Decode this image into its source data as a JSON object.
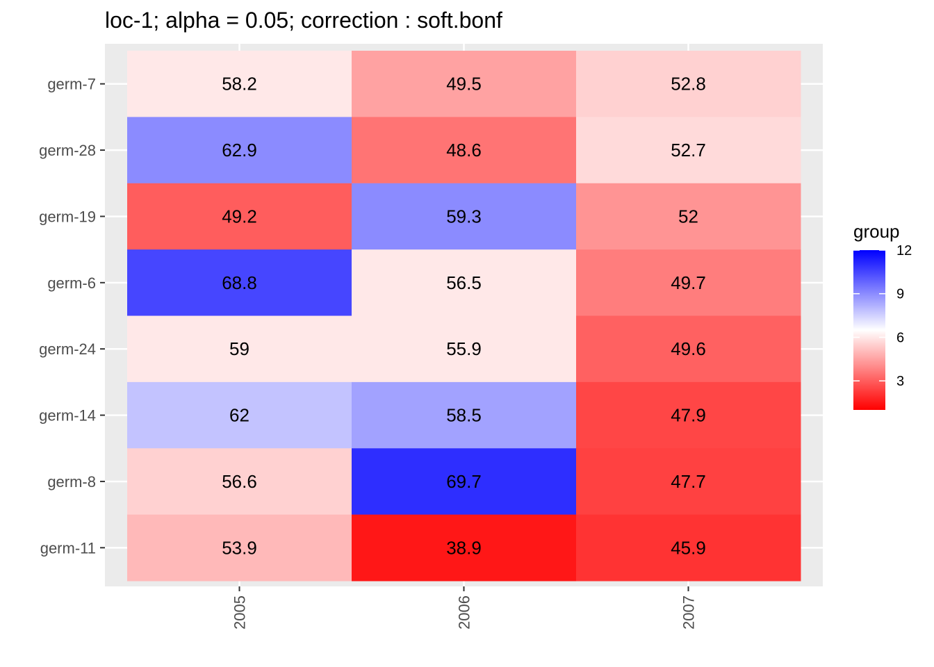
{
  "chart_data": {
    "type": "heatmap",
    "title": "loc-1; alpha = 0.05; correction : soft.bonf",
    "xlabel": "",
    "ylabel": "",
    "x_categories": [
      "2005",
      "2006",
      "2007"
    ],
    "y_categories": [
      "germ-7",
      "germ-28",
      "germ-19",
      "germ-6",
      "germ-24",
      "germ-14",
      "germ-8",
      "germ-11"
    ],
    "cells": [
      {
        "x": "2005",
        "y": "germ-7",
        "label": "58.2",
        "group": 6
      },
      {
        "x": "2006",
        "y": "germ-7",
        "label": "49.5",
        "group": 4.5
      },
      {
        "x": "2007",
        "y": "germ-7",
        "label": "52.8",
        "group": 5.5
      },
      {
        "x": "2005",
        "y": "germ-28",
        "label": "62.9",
        "group": 9
      },
      {
        "x": "2006",
        "y": "germ-28",
        "label": "48.6",
        "group": 3.5
      },
      {
        "x": "2007",
        "y": "germ-28",
        "label": "52.7",
        "group": 5.7
      },
      {
        "x": "2005",
        "y": "germ-19",
        "label": "49.2",
        "group": 3
      },
      {
        "x": "2006",
        "y": "germ-19",
        "label": "59.3",
        "group": 9
      },
      {
        "x": "2007",
        "y": "germ-19",
        "label": "52",
        "group": 4.2
      },
      {
        "x": "2005",
        "y": "germ-6",
        "label": "68.8",
        "group": 10.5
      },
      {
        "x": "2006",
        "y": "germ-6",
        "label": "56.5",
        "group": 6
      },
      {
        "x": "2007",
        "y": "germ-6",
        "label": "49.7",
        "group": 3.7
      },
      {
        "x": "2005",
        "y": "germ-24",
        "label": "59",
        "group": 6
      },
      {
        "x": "2006",
        "y": "germ-24",
        "label": "55.9",
        "group": 6
      },
      {
        "x": "2007",
        "y": "germ-24",
        "label": "49.6",
        "group": 3.1
      },
      {
        "x": "2005",
        "y": "germ-14",
        "label": "62",
        "group": 7.8
      },
      {
        "x": "2006",
        "y": "germ-14",
        "label": "58.5",
        "group": 8.5
      },
      {
        "x": "2007",
        "y": "germ-14",
        "label": "47.9",
        "group": 2.5
      },
      {
        "x": "2005",
        "y": "germ-8",
        "label": "56.6",
        "group": 5.5
      },
      {
        "x": "2006",
        "y": "germ-8",
        "label": "69.7",
        "group": 11
      },
      {
        "x": "2007",
        "y": "germ-8",
        "label": "47.7",
        "group": 2.4
      },
      {
        "x": "2005",
        "y": "germ-11",
        "label": "53.9",
        "group": 5
      },
      {
        "x": "2006",
        "y": "germ-11",
        "label": "38.9",
        "group": 1.5
      },
      {
        "x": "2007",
        "y": "germ-11",
        "label": "45.9",
        "group": 2.1
      }
    ],
    "legend": {
      "title": "group",
      "ticks": [
        3,
        6,
        9,
        12
      ],
      "range": [
        1,
        12
      ],
      "low_color": "#ff0000",
      "mid_color": "#ffffff",
      "high_color": "#0000ff",
      "placement": "right"
    },
    "panel_background": "#ebebeb",
    "grid": true
  }
}
